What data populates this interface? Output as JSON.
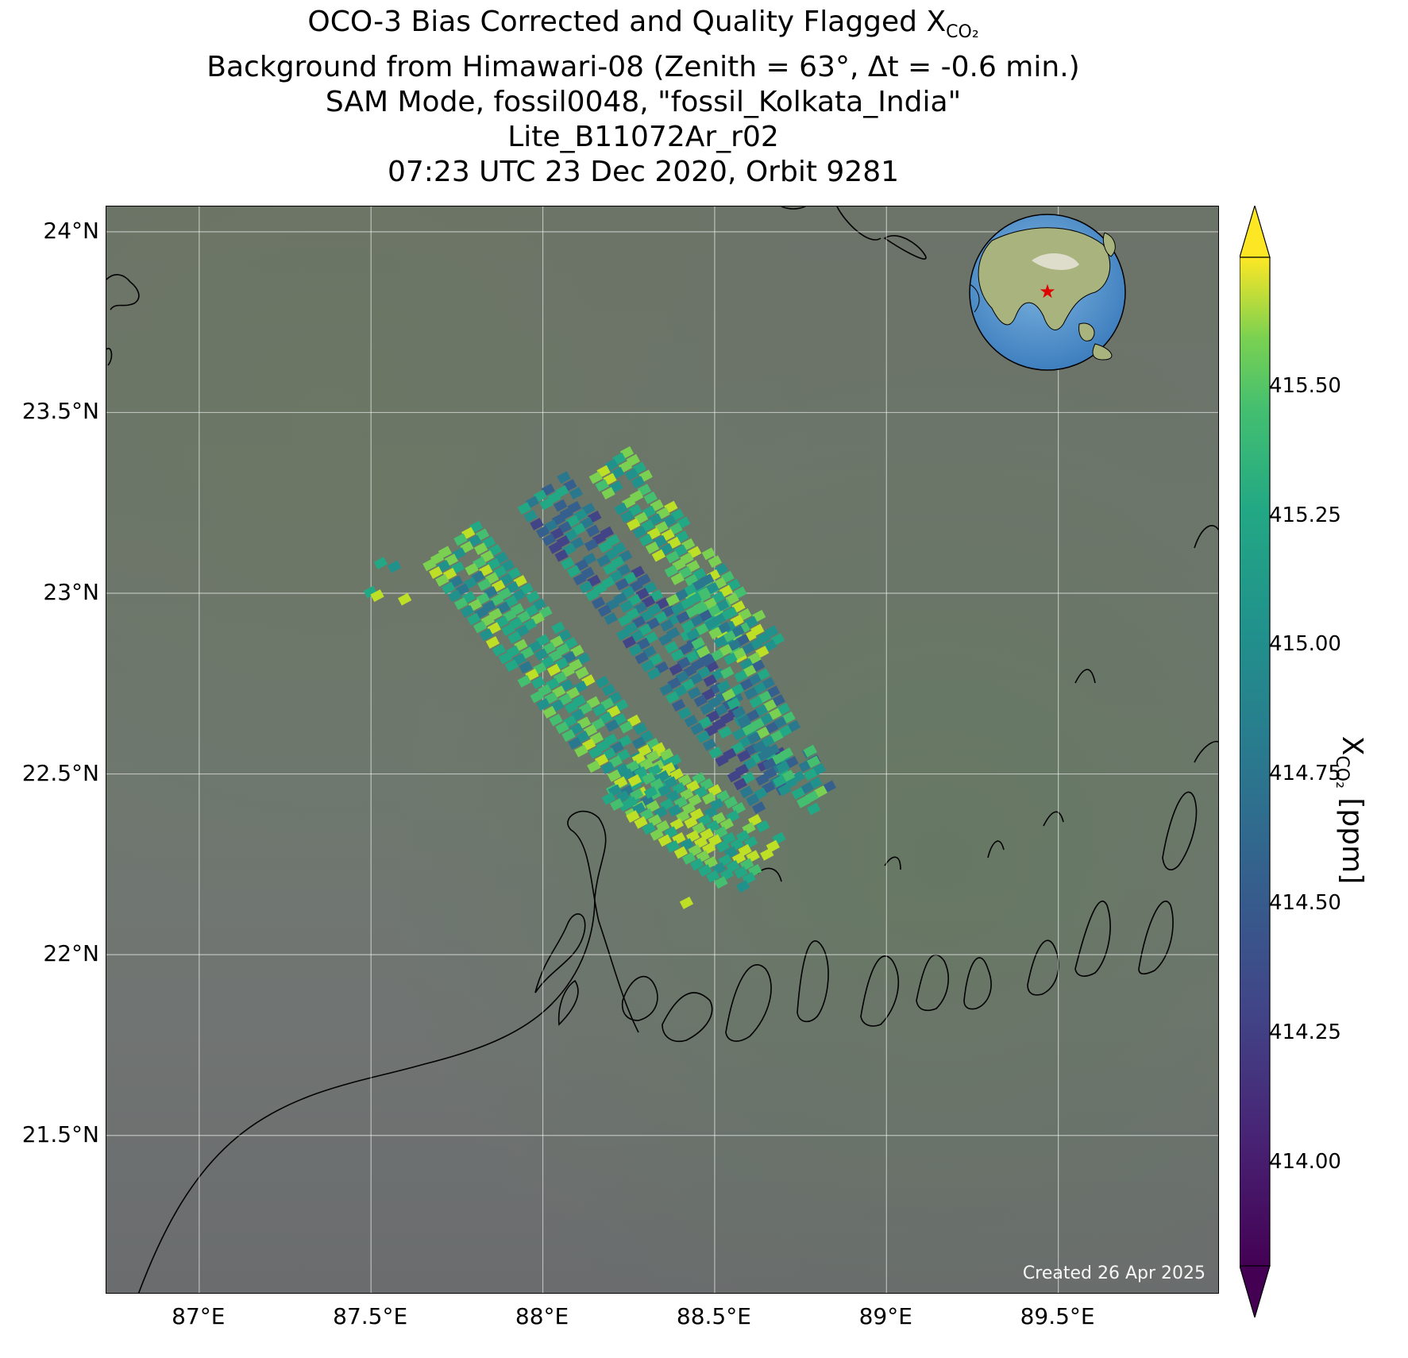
{
  "title": {
    "line1_prefix": "OCO-3 Bias Corrected and Quality Flagged X",
    "line1_sub": "CO₂",
    "line2": "Background from Himawari-08 (Zenith = 63°, Δt = -0.6 min.)",
    "line3": "SAM Mode, fossil0048, \"fossil_Kolkata_India\"",
    "line4": "Lite_B11072Ar_r02",
    "line5": "07:23 UTC 23 Dec 2020, Orbit 9281"
  },
  "footer": {
    "created": "Created 26 Apr 2025"
  },
  "map": {
    "lon_range": [
      86.73,
      89.97
    ],
    "lat_range": [
      21.06,
      24.07
    ],
    "lon_ticks": [
      {
        "value": 87.0,
        "label": "87°E"
      },
      {
        "value": 87.5,
        "label": "87.5°E"
      },
      {
        "value": 88.0,
        "label": "88°E"
      },
      {
        "value": 88.5,
        "label": "88.5°E"
      },
      {
        "value": 89.0,
        "label": "89°E"
      },
      {
        "value": 89.5,
        "label": "89.5°E"
      }
    ],
    "lat_ticks": [
      {
        "value": 24.0,
        "label": "24°N"
      },
      {
        "value": 23.5,
        "label": "23.5°N"
      },
      {
        "value": 23.0,
        "label": "23°N"
      },
      {
        "value": 22.5,
        "label": "22.5°N"
      },
      {
        "value": 22.0,
        "label": "22°N"
      },
      {
        "value": 21.5,
        "label": "21.5°N"
      }
    ],
    "gridlines": true,
    "background": "Himawari-08 true color",
    "inset_globe": {
      "position": "top-right",
      "marker": "red-star",
      "target_lon": 88.3,
      "target_lat": 22.6
    },
    "swaths": [
      {
        "from": [
          87.73,
          23.12
        ],
        "to": [
          88.33,
          22.42
        ],
        "half_width": 0.1
      },
      {
        "from": [
          88.0,
          23.27
        ],
        "to": [
          88.7,
          22.42
        ],
        "half_width": 0.08
      },
      {
        "from": [
          88.2,
          23.35
        ],
        "to": [
          88.65,
          22.82
        ],
        "half_width": 0.06
      },
      {
        "from": [
          88.42,
          23.0
        ],
        "to": [
          88.78,
          22.42
        ],
        "half_width": 0.07
      },
      {
        "from": [
          88.25,
          22.5
        ],
        "to": [
          88.63,
          22.23
        ],
        "half_width": 0.11
      }
    ],
    "scattered": [
      [
        87.53,
        23.08
      ],
      [
        87.57,
        23.07
      ],
      [
        87.5,
        23.0
      ],
      [
        87.52,
        22.99
      ],
      [
        87.6,
        22.98
      ],
      [
        88.78,
        22.56
      ],
      [
        88.79,
        22.53
      ],
      [
        88.79,
        22.4
      ],
      [
        88.42,
        22.14
      ]
    ]
  },
  "colorbar": {
    "colormap": "viridis",
    "min": 413.8,
    "max": 415.75,
    "extend": "both",
    "ticks": [
      {
        "value": 414.0,
        "label": "414.00"
      },
      {
        "value": 414.25,
        "label": "414.25"
      },
      {
        "value": 414.5,
        "label": "414.50"
      },
      {
        "value": 414.75,
        "label": "414.75"
      },
      {
        "value": 415.0,
        "label": "415.00"
      },
      {
        "value": 415.25,
        "label": "415.25"
      },
      {
        "value": 415.5,
        "label": "415.50"
      }
    ],
    "label_prefix": "X",
    "label_sub": "CO₂",
    "label_suffix": " [ppm]"
  }
}
